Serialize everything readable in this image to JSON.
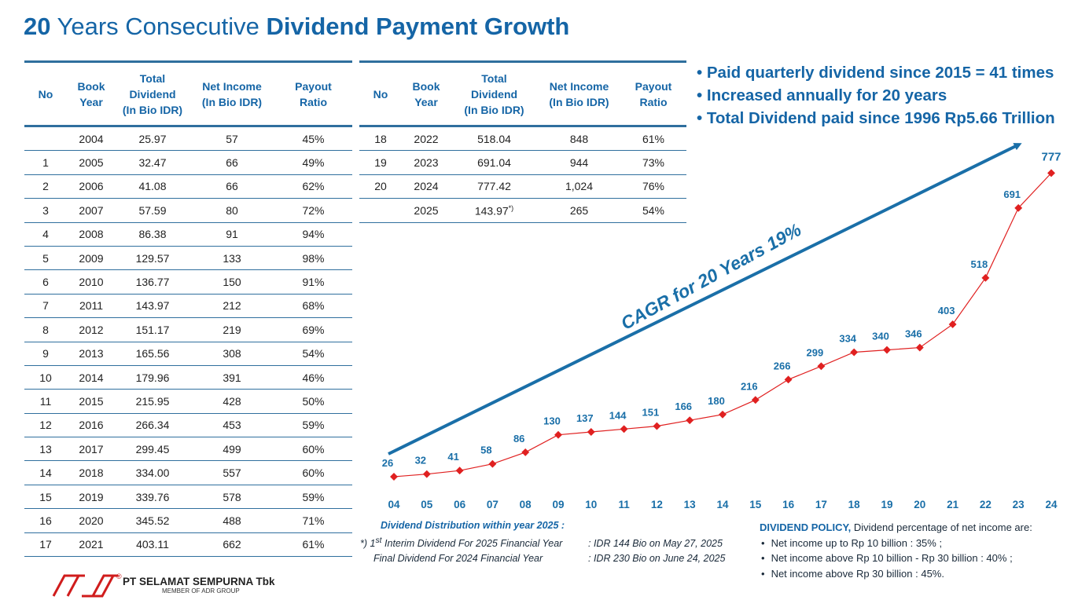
{
  "title": {
    "num": "20",
    "mid": " Years Consecutive ",
    "bold": "Dividend Payment Growth"
  },
  "table": {
    "headers": {
      "no": "No",
      "book_year": [
        "Book",
        "Year"
      ],
      "total_div": [
        "Total",
        "Dividend",
        "(In Bio IDR)"
      ],
      "net_income": [
        "Net Income",
        "(In Bio IDR)"
      ],
      "payout": [
        "Payout",
        "Ratio"
      ]
    },
    "left_rows": [
      [
        "",
        "2004",
        "25.97",
        "57",
        "45%"
      ],
      [
        "1",
        "2005",
        "32.47",
        "66",
        "49%"
      ],
      [
        "2",
        "2006",
        "41.08",
        "66",
        "62%"
      ],
      [
        "3",
        "2007",
        "57.59",
        "80",
        "72%"
      ],
      [
        "4",
        "2008",
        "86.38",
        "91",
        "94%"
      ],
      [
        "5",
        "2009",
        "129.57",
        "133",
        "98%"
      ],
      [
        "6",
        "2010",
        "136.77",
        "150",
        "91%"
      ],
      [
        "7",
        "2011",
        "143.97",
        "212",
        "68%"
      ],
      [
        "8",
        "2012",
        "151.17",
        "219",
        "69%"
      ],
      [
        "9",
        "2013",
        "165.56",
        "308",
        "54%"
      ],
      [
        "10",
        "2014",
        "179.96",
        "391",
        "46%"
      ],
      [
        "11",
        "2015",
        "215.95",
        "428",
        "50%"
      ],
      [
        "12",
        "2016",
        "266.34",
        "453",
        "59%"
      ],
      [
        "13",
        "2017",
        "299.45",
        "499",
        "60%"
      ],
      [
        "14",
        "2018",
        "334.00",
        "557",
        "60%"
      ],
      [
        "15",
        "2019",
        "339.76",
        "578",
        "59%"
      ],
      [
        "16",
        "2020",
        "345.52",
        "488",
        "71%"
      ],
      [
        "17",
        "2021",
        "403.11",
        "662",
        "61%"
      ]
    ],
    "right_rows": [
      [
        "18",
        "2022",
        "518.04",
        "848",
        "61%"
      ],
      [
        "19",
        "2023",
        "691.04",
        "944",
        "73%"
      ],
      [
        "20",
        "2024",
        "777.42",
        "1,024",
        "76%"
      ],
      [
        "",
        "2025",
        "143.97",
        "265",
        "54%"
      ]
    ],
    "footnote_mark": "*)"
  },
  "bullets": [
    "Paid quarterly dividend since 2015 = 41 times",
    "Increased annually for 20 years",
    "Total Dividend paid since 1996 Rp5.66 Trillion"
  ],
  "chart_data": {
    "type": "line",
    "x": [
      "04",
      "05",
      "06",
      "07",
      "08",
      "09",
      "10",
      "11",
      "12",
      "13",
      "14",
      "15",
      "16",
      "17",
      "18",
      "19",
      "20",
      "21",
      "22",
      "23",
      "24"
    ],
    "values": [
      25.97,
      32.47,
      41.08,
      57.59,
      86.38,
      129.57,
      136.77,
      143.97,
      151.17,
      165.56,
      179.96,
      215.95,
      266.34,
      299.45,
      334.0,
      339.76,
      345.52,
      403.11,
      518.04,
      691.04,
      777.42
    ],
    "data_labels": [
      "26",
      "32",
      "41",
      "58",
      "86",
      "130",
      "137",
      "144",
      "151",
      "166",
      "180",
      "216",
      "266",
      "299",
      "334",
      "340",
      "346",
      "403",
      "518",
      "691",
      "777"
    ],
    "annotation": "CAGR for 20 Years 19%",
    "line_color": "#e02020",
    "arrow_color": "#1a6fa8",
    "label_color": "#1a6fa8"
  },
  "distribution": {
    "heading": "Dividend Distribution within year 2025 :",
    "row1_mark": "*) 1",
    "row1_sup": "st",
    "row1_label": " Interim Dividend For 2025 Financial Year",
    "row1_value": ": IDR 144 Bio on May 27, 2025",
    "row2_label": "Final Dividend For 2024 Financial Year",
    "row2_value": ": IDR 230 Bio on June 24, 2025"
  },
  "policy": {
    "heading_bold": "DIVIDEND POLICY,",
    "heading_rest": " Dividend percentage of net income are:",
    "items": [
      "Net income up to Rp 10 billion : 35% ;",
      "Net income above Rp 10 billion - Rp 30 billion : 40% ;",
      "Net income above Rp 30 billion : 45%."
    ]
  },
  "logo": {
    "name": "PT SELAMAT SEMPURNA Tbk",
    "sub": "MEMBER OF ADR GROUP",
    "registered": "®"
  }
}
